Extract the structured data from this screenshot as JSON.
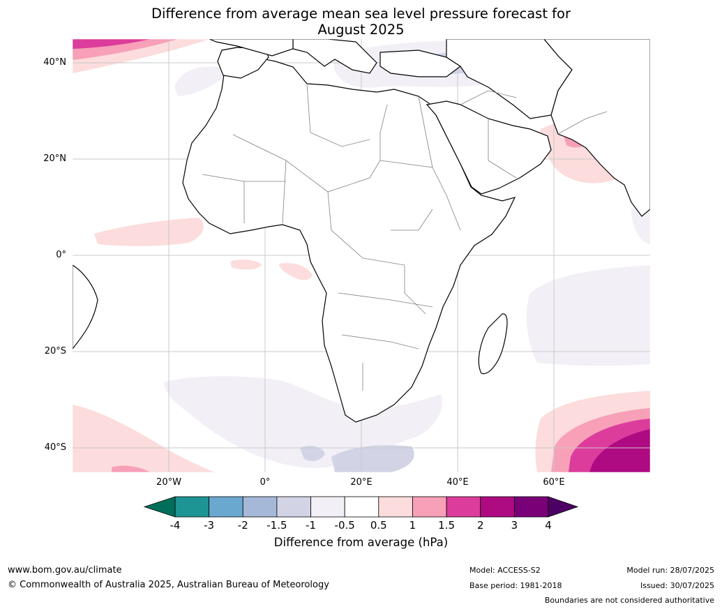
{
  "title": {
    "line1": "Difference from average mean sea level pressure forecast for",
    "line2": "August 2025"
  },
  "map": {
    "lat_labels": [
      "40°N",
      "20°N",
      "0°",
      "20°S",
      "40°S"
    ],
    "lon_labels": [
      "20°W",
      "0°",
      "20°E",
      "40°E",
      "60°E"
    ],
    "colors": {
      "land_fill": "#ffffff",
      "coastline": "#000000",
      "borders": "#808080",
      "gridlines": "#c8c8c8",
      "light_pink": "#fcdcdc",
      "pink": "#f7a0b8",
      "magenta": "#dc3c9c",
      "deep_magenta": "#ae0a82",
      "lavender": "#f0eef5",
      "light_blue_grey": "#d2d4e6",
      "blue": "#6aa8d0"
    }
  },
  "colorbar": {
    "ticks": [
      "-4",
      "-3",
      "-2",
      "-1.5",
      "-1",
      "-0.5",
      "0.5",
      "1",
      "1.5",
      "2",
      "3",
      "4"
    ],
    "colors": [
      "#1e9494",
      "#6aa8d0",
      "#a6b8d8",
      "#d2d4e6",
      "#f3eff6",
      "#ffffff",
      "#fcdcdc",
      "#f7a0b8",
      "#dc3c9c",
      "#ae0a82",
      "#7a0077"
    ],
    "under_color": "#006e5a",
    "over_color": "#4c0064",
    "label": "Difference from average (hPa)"
  },
  "footer": {
    "url": "www.bom.gov.au/climate",
    "copyright": "© Commonwealth of Australia 2025, Australian Bureau of Meteorology",
    "model": "Model: ACCESS-S2",
    "base_period": "Base period: 1981-2018",
    "model_run": "Model run: 28/07/2025",
    "issued": "Issued: 30/07/2025",
    "disclaimer": "Boundaries are not considered authoritative"
  }
}
